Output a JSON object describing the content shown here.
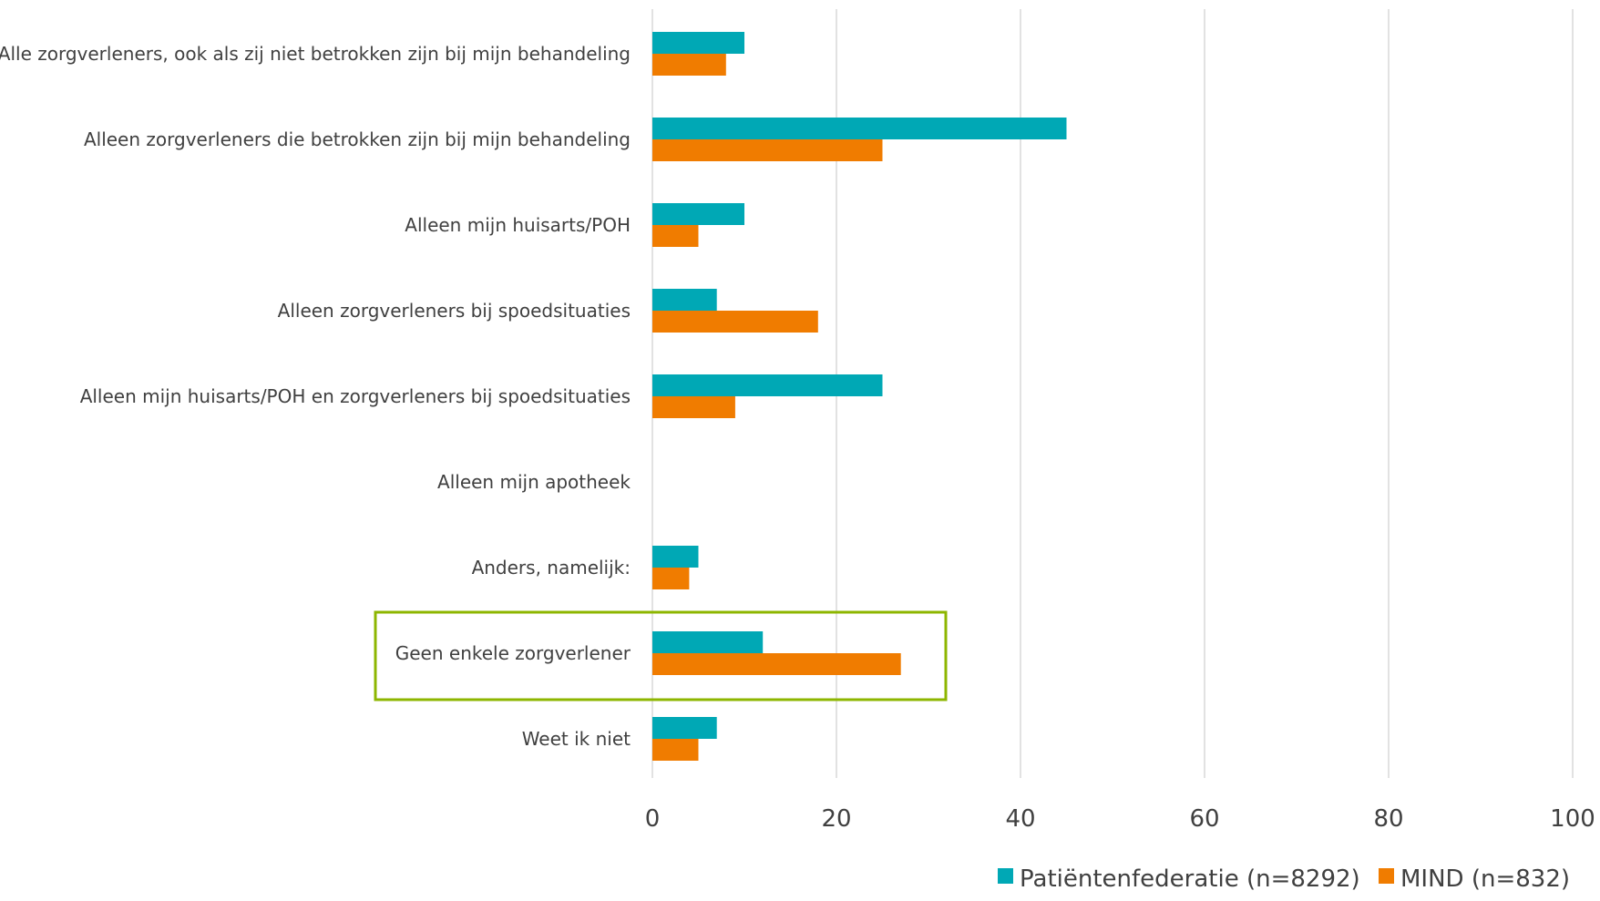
{
  "chart_data": {
    "type": "bar",
    "orientation": "horizontal",
    "categories": [
      "Alle zorgverleners, ook als zij niet betrokken zijn bij mijn behandeling",
      "Alleen zorgverleners die betrokken zijn bij mijn behandeling",
      "Alleen mijn huisarts/POH",
      "Alleen zorgverleners bij spoedsituaties",
      "Alleen mijn huisarts/POH en zorgverleners bij spoedsituaties",
      "Alleen mijn apotheek",
      "Anders, namelijk:",
      "Geen enkele zorgverlener",
      "Weet ik niet"
    ],
    "series": [
      {
        "name": "Patiëntenfederatie (n=8292)",
        "color": "#00A8B5",
        "values": [
          10,
          45,
          10,
          7,
          25,
          0,
          5,
          12,
          7
        ]
      },
      {
        "name": "MIND (n=832)",
        "color": "#F07C00",
        "values": [
          8,
          25,
          5,
          18,
          9,
          0,
          4,
          27,
          5
        ]
      }
    ],
    "xlim": [
      0,
      100
    ],
    "xticks": [
      "0",
      "20",
      "40",
      "60",
      "80",
      "100"
    ],
    "grid": true,
    "legend_position": "bottom-right",
    "highlight": {
      "category_index": 7,
      "color": "#8DB600"
    }
  }
}
